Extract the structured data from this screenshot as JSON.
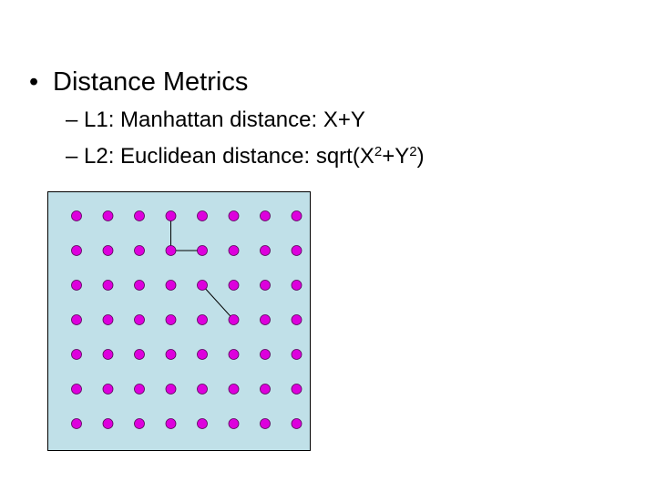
{
  "slide": {
    "bullet": "•",
    "heading": "Distance Metrics",
    "dash": "–",
    "items": [
      {
        "prefix": "L1: Manhattan distance: X+Y"
      },
      {
        "prefix": "L2: Euclidean distance: sqrt(X",
        "sup1": "2",
        "mid": "+Y",
        "sup2": "2",
        "suffix": ")"
      }
    ]
  },
  "diagram": {
    "background_color": "#c0e0e8",
    "point_color": "#dd00dd",
    "columns": 8,
    "rows": 7,
    "manhattan_path": [
      [
        3,
        0
      ],
      [
        3,
        1
      ],
      [
        4,
        1
      ]
    ],
    "euclidean_path": [
      [
        4,
        2
      ],
      [
        5,
        3
      ]
    ]
  }
}
